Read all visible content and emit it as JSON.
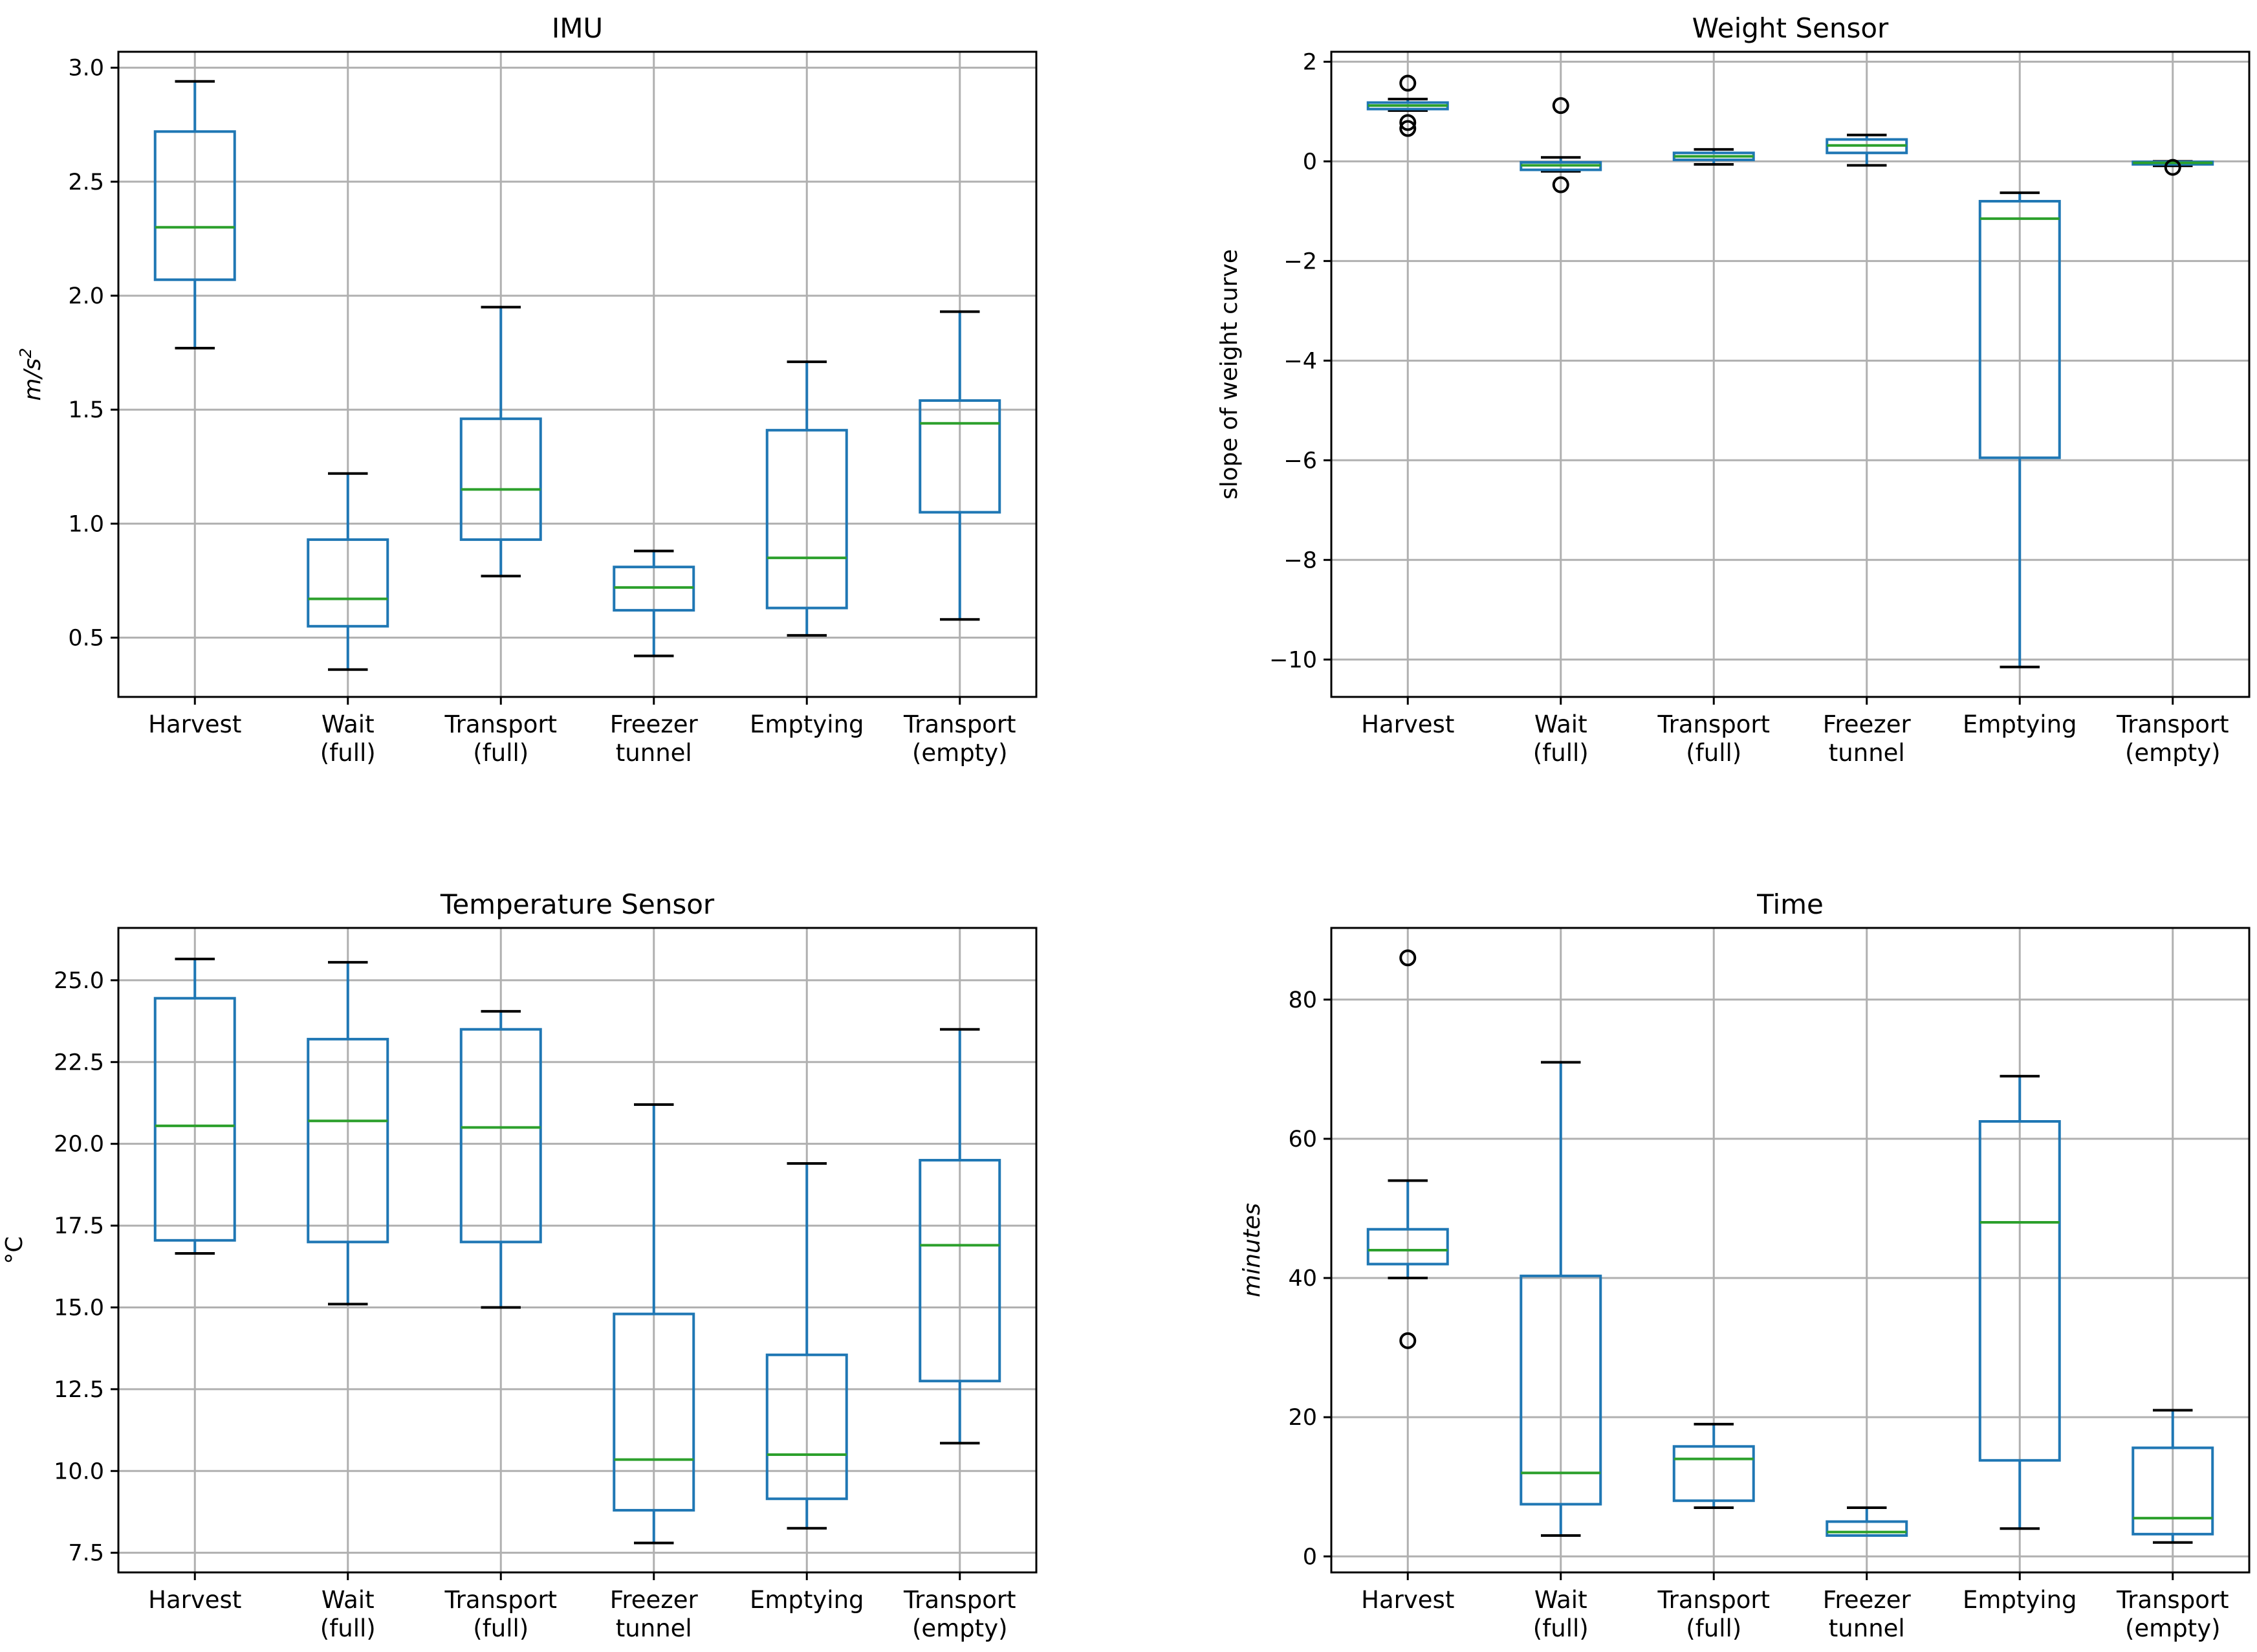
{
  "colors": {
    "box": "#1f77b4",
    "median": "#2ca02c",
    "whisker_cap": "#000000",
    "grid": "#b0b0b0",
    "axes": "#000000"
  },
  "chart_data": [
    {
      "id": "imu",
      "type": "boxplot",
      "title": "IMU",
      "ylabel": "m/s²",
      "ylabel_base": "m/s",
      "ylabel_sup": "2",
      "ylabel_italic": true,
      "ylim": [
        0.24,
        3.07
      ],
      "yticks": [
        0.5,
        1.0,
        1.5,
        2.0,
        2.5,
        3.0
      ],
      "ytick_labels": [
        "0.5",
        "1.0",
        "1.5",
        "2.0",
        "2.5",
        "3.0"
      ],
      "categories": [
        [
          "Harvest"
        ],
        [
          "Wait",
          "(full)"
        ],
        [
          "Transport",
          "(full)"
        ],
        [
          "Freezer",
          "tunnel"
        ],
        [
          "Emptying"
        ],
        [
          "Transport",
          "(empty)"
        ]
      ],
      "boxes": [
        {
          "whislo": 1.77,
          "q1": 2.07,
          "med": 2.3,
          "q3": 2.72,
          "whishi": 2.94,
          "fliers": []
        },
        {
          "whislo": 0.36,
          "q1": 0.55,
          "med": 0.67,
          "q3": 0.93,
          "whishi": 1.22,
          "fliers": []
        },
        {
          "whislo": 0.77,
          "q1": 0.93,
          "med": 1.15,
          "q3": 1.46,
          "whishi": 1.95,
          "fliers": []
        },
        {
          "whislo": 0.42,
          "q1": 0.62,
          "med": 0.72,
          "q3": 0.81,
          "whishi": 0.88,
          "fliers": []
        },
        {
          "whislo": 0.51,
          "q1": 0.63,
          "med": 0.85,
          "q3": 1.41,
          "whishi": 1.71,
          "fliers": []
        },
        {
          "whislo": 0.58,
          "q1": 1.05,
          "med": 1.44,
          "q3": 1.54,
          "whishi": 1.93,
          "fliers": []
        }
      ]
    },
    {
      "id": "weight",
      "type": "boxplot",
      "title": "Weight Sensor",
      "ylabel": "slope of weight curve",
      "ylabel_italic": false,
      "ylim": [
        -10.75,
        2.2
      ],
      "yticks": [
        -10,
        -8,
        -6,
        -4,
        -2,
        0,
        2
      ],
      "ytick_labels": [
        "−10",
        "−8",
        "−6",
        "−4",
        "−2",
        "0",
        "2"
      ],
      "categories": [
        [
          "Harvest"
        ],
        [
          "Wait",
          "(full)"
        ],
        [
          "Transport",
          "(full)"
        ],
        [
          "Freezer",
          "tunnel"
        ],
        [
          "Emptying"
        ],
        [
          "Transport",
          "(empty)"
        ]
      ],
      "boxes": [
        {
          "whislo": 1.02,
          "q1": 1.05,
          "med": 1.12,
          "q3": 1.18,
          "whishi": 1.25,
          "fliers": [
            1.57,
            0.78,
            0.66
          ]
        },
        {
          "whislo": -0.2,
          "q1": -0.17,
          "med": -0.08,
          "q3": -0.02,
          "whishi": 0.08,
          "fliers": [
            1.12,
            -0.47
          ]
        },
        {
          "whislo": -0.06,
          "q1": 0.03,
          "med": 0.1,
          "q3": 0.17,
          "whishi": 0.24,
          "fliers": []
        },
        {
          "whislo": -0.08,
          "q1": 0.17,
          "med": 0.32,
          "q3": 0.44,
          "whishi": 0.53,
          "fliers": []
        },
        {
          "whislo": -10.15,
          "q1": -5.95,
          "med": -1.15,
          "q3": -0.8,
          "whishi": -0.63,
          "fliers": []
        },
        {
          "whislo": -0.09,
          "q1": -0.06,
          "med": -0.03,
          "q3": -0.01,
          "whishi": 0.0,
          "fliers": [
            -0.12
          ]
        }
      ]
    },
    {
      "id": "temperature",
      "type": "boxplot",
      "title": "Temperature Sensor",
      "ylabel": "°C",
      "ylabel_italic": false,
      "ylim": [
        6.9,
        26.6
      ],
      "yticks": [
        7.5,
        10.0,
        12.5,
        15.0,
        17.5,
        20.0,
        22.5,
        25.0
      ],
      "ytick_labels": [
        "7.5",
        "10.0",
        "12.5",
        "15.0",
        "17.5",
        "20.0",
        "22.5",
        "25.0"
      ],
      "categories": [
        [
          "Harvest"
        ],
        [
          "Wait",
          "(full)"
        ],
        [
          "Transport",
          "(full)"
        ],
        [
          "Freezer",
          "tunnel"
        ],
        [
          "Emptying"
        ],
        [
          "Transport",
          "(empty)"
        ]
      ],
      "boxes": [
        {
          "whislo": 16.65,
          "q1": 17.05,
          "med": 20.55,
          "q3": 24.45,
          "whishi": 25.65,
          "fliers": []
        },
        {
          "whislo": 15.1,
          "q1": 17.0,
          "med": 20.7,
          "q3": 23.2,
          "whishi": 25.55,
          "fliers": []
        },
        {
          "whislo": 15.0,
          "q1": 17.0,
          "med": 20.5,
          "q3": 23.5,
          "whishi": 24.05,
          "fliers": []
        },
        {
          "whislo": 7.8,
          "q1": 8.8,
          "med": 10.35,
          "q3": 14.8,
          "whishi": 21.2,
          "fliers": []
        },
        {
          "whislo": 8.25,
          "q1": 9.15,
          "med": 10.5,
          "q3": 13.55,
          "whishi": 19.4,
          "fliers": []
        },
        {
          "whislo": 10.85,
          "q1": 12.75,
          "med": 16.9,
          "q3": 19.5,
          "whishi": 23.5,
          "fliers": []
        }
      ]
    },
    {
      "id": "time",
      "type": "boxplot",
      "title": "Time",
      "ylabel": "minutes",
      "ylabel_italic": true,
      "ylim": [
        -2.3,
        90.3
      ],
      "yticks": [
        0,
        20,
        40,
        60,
        80
      ],
      "ytick_labels": [
        "0",
        "20",
        "40",
        "60",
        "80"
      ],
      "categories": [
        [
          "Harvest"
        ],
        [
          "Wait",
          "(full)"
        ],
        [
          "Transport",
          "(full)"
        ],
        [
          "Freezer",
          "tunnel"
        ],
        [
          "Emptying"
        ],
        [
          "Transport",
          "(empty)"
        ]
      ],
      "boxes": [
        {
          "whislo": 40,
          "q1": 42,
          "med": 44,
          "q3": 47,
          "whishi": 54,
          "fliers": [
            86,
            31
          ]
        },
        {
          "whislo": 3,
          "q1": 7.5,
          "med": 12,
          "q3": 40.3,
          "whishi": 71,
          "fliers": []
        },
        {
          "whislo": 7,
          "q1": 8,
          "med": 14,
          "q3": 15.8,
          "whishi": 19,
          "fliers": []
        },
        {
          "whislo": 3,
          "q1": 3,
          "med": 3.5,
          "q3": 5,
          "whishi": 7,
          "fliers": []
        },
        {
          "whislo": 4,
          "q1": 13.8,
          "med": 48,
          "q3": 62.5,
          "whishi": 69,
          "fliers": []
        },
        {
          "whislo": 2,
          "q1": 3.2,
          "med": 5.5,
          "q3": 15.6,
          "whishi": 21,
          "fliers": []
        }
      ]
    }
  ]
}
